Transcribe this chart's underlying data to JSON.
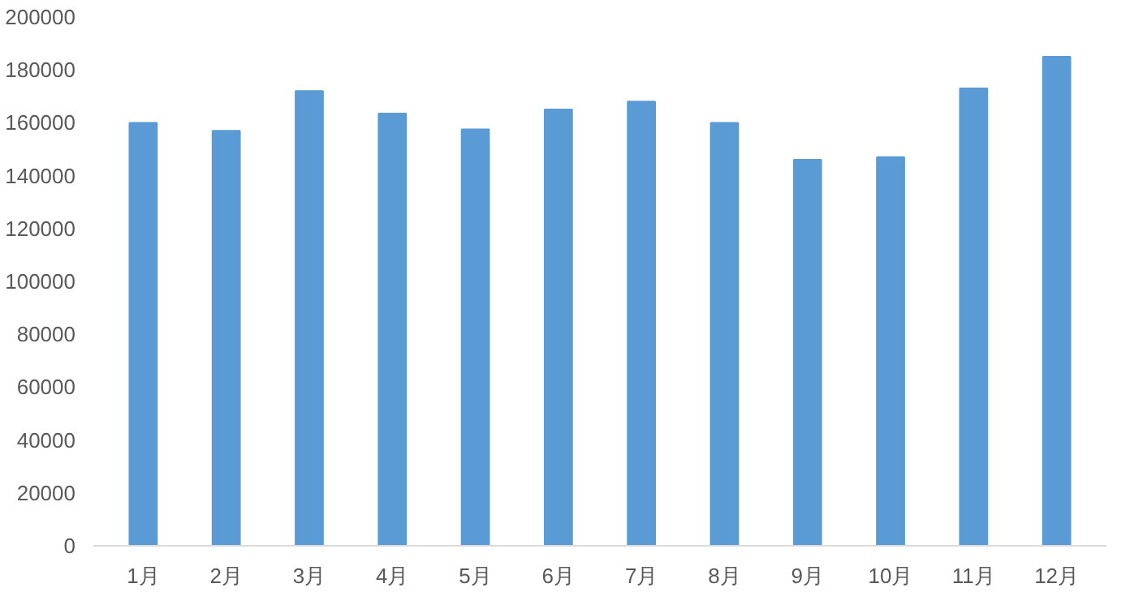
{
  "chart_data": {
    "type": "bar",
    "categories": [
      "1月",
      "2月",
      "3月",
      "4月",
      "5月",
      "6月",
      "7月",
      "8月",
      "9月",
      "10月",
      "11月",
      "12月"
    ],
    "values": [
      160000,
      157000,
      172000,
      163500,
      157500,
      165000,
      168000,
      160000,
      146000,
      147000,
      173000,
      185000
    ],
    "color": "#5b9bd5",
    "ylim": [
      0,
      200000
    ],
    "yticks": [
      0,
      20000,
      40000,
      60000,
      80000,
      100000,
      120000,
      140000,
      160000,
      180000,
      200000
    ],
    "grid": false
  }
}
